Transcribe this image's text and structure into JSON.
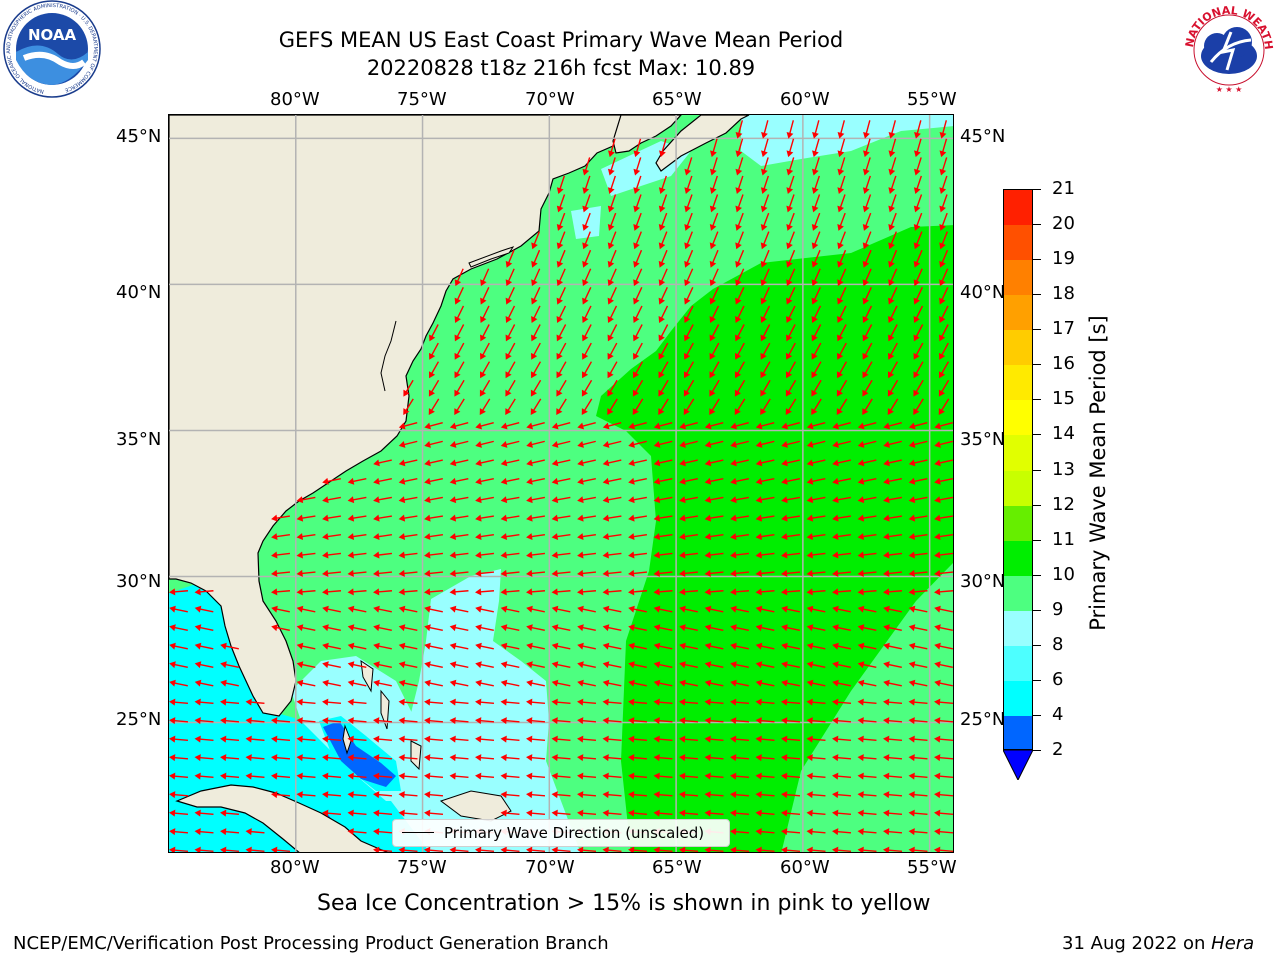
{
  "title": {
    "line1": "GEFS MEAN US East Coast Primary Wave Mean Period",
    "line2": "20220828 t18z 216h fcst   Max: 10.89"
  },
  "logos": {
    "left": {
      "name": "NOAA",
      "ring_text": "NATIONAL OCEANIC AND ATMOSPHERIC ADMINISTRATION · U.S. DEPARTMENT OF COMMERCE"
    },
    "right": {
      "name": "NATIONAL WEATHER SERVICE"
    }
  },
  "map": {
    "projection": "equidistant cylindrical",
    "lon_range": [
      -85,
      -54
    ],
    "lat_range": [
      20.5,
      45.8
    ],
    "lon_ticks": [
      "80°W",
      "75°W",
      "70°W",
      "65°W",
      "60°W",
      "55°W"
    ],
    "lat_ticks": [
      "45°N",
      "40°N",
      "35°N",
      "30°N",
      "25°N"
    ],
    "colors": {
      "land": "#efecdc",
      "coast": "#000000",
      "grid": "#b3b3b3",
      "arrow": "#ff0000",
      "period_2_4": "#0066ff",
      "period_4_6": "#00ffff",
      "period_8_9": "#99ffff",
      "period_9_10": "#4dff80",
      "period_10_11": "#00ee00"
    },
    "legend": "Primary Wave Direction (unscaled)",
    "arrow_icon": "red-direction-arrow-icon"
  },
  "colorbar": {
    "label": "Primary Wave Mean Period [s]",
    "ticks": [
      "2",
      "4",
      "6",
      "8",
      "9",
      "10",
      "11",
      "12",
      "13",
      "14",
      "15",
      "16",
      "17",
      "18",
      "19",
      "20",
      "21"
    ],
    "segment_colors": [
      "#0066ff",
      "#00ffff",
      "#4dffff",
      "#99ffff",
      "#4dff80",
      "#00ee00",
      "#66ee00",
      "#c8ff00",
      "#e1ff00",
      "#ffff00",
      "#ffea00",
      "#ffcc00",
      "#ffa000",
      "#ff8000",
      "#ff5000",
      "#ff2000"
    ],
    "extend_color": "#0000ff"
  },
  "subtitle": "Sea Ice Concentration > 15% is shown in pink to yellow",
  "footer": {
    "left": "NCEP/EMC/Verification Post Processing Product Generation Branch",
    "right_date": "31 Aug 2022 on ",
    "right_machine": "Hera"
  }
}
